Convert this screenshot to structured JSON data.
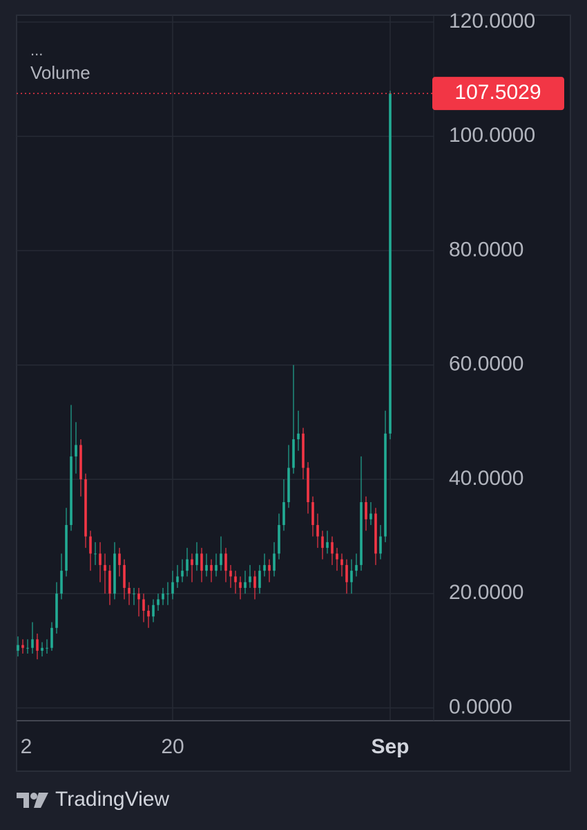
{
  "chart_data": {
    "type": "candlestick",
    "legend_dots": "...",
    "indicator": "Volume",
    "footer": "TradingView",
    "categories": [
      null,
      null,
      "2",
      null,
      null,
      null,
      null,
      null,
      null,
      null,
      null,
      null,
      null,
      null,
      null,
      null,
      null,
      null,
      null,
      null,
      null,
      null,
      null,
      null,
      null,
      null,
      null,
      null,
      null,
      null,
      null,
      null,
      "20",
      null,
      null,
      null,
      null,
      null,
      null,
      null,
      null,
      null,
      null,
      null,
      null,
      null,
      null,
      null,
      null,
      null,
      null,
      null,
      null,
      null,
      null,
      null,
      null,
      null,
      null,
      null,
      null,
      null,
      null,
      null,
      null,
      null,
      null,
      null,
      null,
      null,
      null,
      null,
      null,
      null,
      null,
      null,
      null,
      "Sep"
    ],
    "open": [
      10,
      11,
      10.5,
      10.5,
      12,
      10,
      10.5,
      10.5,
      14,
      20,
      24,
      32,
      44,
      46,
      40,
      30,
      27,
      27,
      25,
      24,
      20,
      27,
      25,
      21,
      20,
      20,
      19,
      17,
      16,
      18,
      19,
      20,
      20,
      22,
      23,
      24,
      26,
      25,
      27,
      24,
      25,
      24,
      25,
      27,
      24,
      23,
      22,
      21,
      22,
      23,
      21,
      24,
      25,
      24,
      27,
      32,
      36,
      42,
      47,
      48,
      42,
      36,
      32,
      30,
      28,
      29,
      27,
      26,
      25,
      22,
      24,
      25,
      36,
      33,
      34,
      27,
      30,
      48
    ],
    "high": [
      12.5,
      12,
      12,
      15,
      13,
      11.5,
      12,
      15,
      22,
      27,
      35,
      53,
      50,
      47,
      41,
      31,
      29,
      29,
      27,
      25,
      29,
      28,
      26,
      22,
      21,
      21,
      20,
      18,
      19,
      20,
      21,
      22,
      24,
      25,
      26,
      28,
      27,
      29,
      28,
      27,
      26,
      27,
      30,
      28,
      25,
      24,
      23,
      24,
      25,
      24,
      25,
      27,
      26,
      29,
      34,
      40,
      46,
      60,
      52,
      49,
      43,
      37,
      34,
      31,
      31,
      30,
      28,
      27,
      26,
      26,
      27,
      44,
      37,
      36,
      35,
      32,
      52,
      108
    ],
    "low": [
      9,
      9.5,
      9.5,
      9.5,
      8.5,
      9,
      9.5,
      10,
      13,
      19,
      23,
      31,
      41,
      37,
      28,
      24,
      25,
      22,
      20,
      18,
      19,
      23,
      19,
      18,
      18,
      16,
      15,
      14,
      15,
      17,
      18,
      18,
      19,
      21,
      22,
      23,
      22,
      24,
      22,
      23,
      22,
      23,
      24,
      22,
      21,
      20,
      19,
      20,
      21,
      19,
      20,
      23,
      22,
      23,
      26,
      31,
      35,
      41,
      45,
      40,
      34,
      30,
      28,
      26,
      27,
      25,
      24,
      23,
      20,
      20,
      23,
      24,
      31,
      32,
      25,
      26,
      29,
      47
    ],
    "close": [
      11,
      10.5,
      10.5,
      12,
      10,
      10.5,
      10.5,
      14,
      20,
      24,
      32,
      44,
      46,
      40,
      30,
      27,
      27,
      25,
      24,
      20,
      27,
      25,
      21,
      20,
      20,
      19,
      17,
      16,
      18,
      19,
      20,
      20,
      22,
      23,
      24,
      26,
      25,
      27,
      24,
      25,
      24,
      25,
      27,
      24,
      23,
      22,
      21,
      22,
      23,
      21,
      24,
      25,
      24,
      27,
      32,
      36,
      42,
      47,
      48,
      42,
      36,
      32,
      30,
      28,
      29,
      27,
      26,
      25,
      22,
      24,
      25,
      36,
      33,
      34,
      27,
      30,
      48,
      107.5029
    ],
    "up_color": "#22ab94",
    "down_color": "#f23645",
    "last_price": {
      "value": 107.5029,
      "label": "107.5029"
    },
    "ylim": [
      -2,
      121.2
    ],
    "yticks": [
      {
        "value": 0,
        "label": "0.0000"
      },
      {
        "value": 20,
        "label": "20.0000"
      },
      {
        "value": 40,
        "label": "40.0000"
      },
      {
        "value": 60,
        "label": "60.0000"
      },
      {
        "value": 80,
        "label": "80.0000"
      },
      {
        "value": 100,
        "label": "100.0000"
      },
      {
        "value": 120,
        "label": "120.0000"
      }
    ],
    "grid": true
  }
}
